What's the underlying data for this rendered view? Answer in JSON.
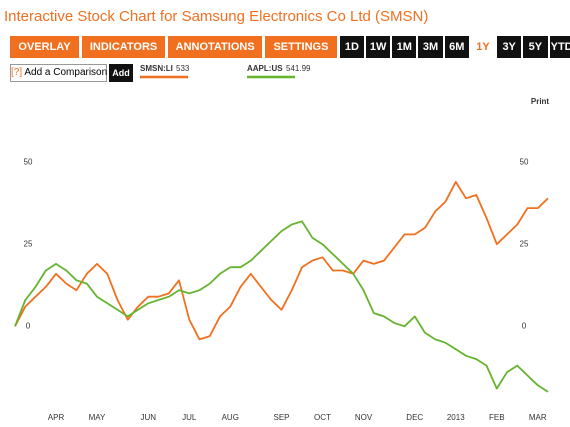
{
  "header": {
    "title": "Interactive Stock Chart for Samsung Electronics Co Ltd (SMSN)"
  },
  "toolbar": {
    "menus": [
      "OVERLAY",
      "INDICATORS",
      "ANNOTATIONS",
      "SETTINGS"
    ],
    "ranges": [
      "1D",
      "1W",
      "1M",
      "3M",
      "6M",
      "1Y",
      "3Y",
      "5Y",
      "YTD"
    ],
    "selected": "1Y"
  },
  "comparison": {
    "help": "[?]",
    "placeholder": "Add a Comparison",
    "button": "Add"
  },
  "print": "Print",
  "chart_data": {
    "type": "line",
    "categories": [
      null,
      null,
      null,
      null,
      "APR",
      null,
      null,
      null,
      "MAY",
      null,
      null,
      null,
      null,
      "JUN",
      null,
      null,
      null,
      "JUL",
      null,
      null,
      null,
      "AUG",
      null,
      null,
      null,
      null,
      "SEP",
      null,
      null,
      null,
      "OCT",
      null,
      null,
      null,
      "NOV",
      null,
      null,
      null,
      null,
      "DEC",
      null,
      null,
      null,
      "2013",
      null,
      null,
      null,
      "FEB",
      null,
      null,
      null,
      "MAR",
      null
    ],
    "series": [
      {
        "name": "SMSN:LI",
        "last": 533,
        "color": "#f07020",
        "values": [
          0,
          6,
          9,
          12,
          16,
          13,
          11,
          16,
          19,
          16,
          8,
          2,
          6,
          9,
          9,
          10,
          14,
          2,
          -4,
          -3,
          3,
          6,
          12,
          16,
          12,
          8,
          5,
          11,
          18,
          20,
          21,
          17,
          17,
          16,
          20,
          19,
          20,
          24,
          28,
          28,
          30,
          35,
          38,
          44,
          39,
          40,
          33,
          25,
          28,
          31,
          36,
          36,
          39
        ]
      },
      {
        "name": "AAPL:US",
        "last": 541.99,
        "color": "#66b32e",
        "values": [
          0,
          8,
          12,
          17,
          19,
          17,
          14,
          13,
          9,
          7,
          5,
          3,
          5,
          7,
          8,
          9,
          11,
          10,
          11,
          13,
          16,
          18,
          18,
          20,
          23,
          26,
          29,
          31,
          32,
          27,
          25,
          22,
          19,
          16,
          11,
          4,
          3,
          1,
          0,
          3,
          -2,
          -4,
          -5,
          -7,
          -9,
          -10,
          -12,
          -19,
          -14,
          -12,
          -15,
          -18,
          -20
        ]
      }
    ],
    "ylim": [
      -24,
      72
    ],
    "yticks": [
      0,
      25,
      50
    ],
    "grid": false
  }
}
